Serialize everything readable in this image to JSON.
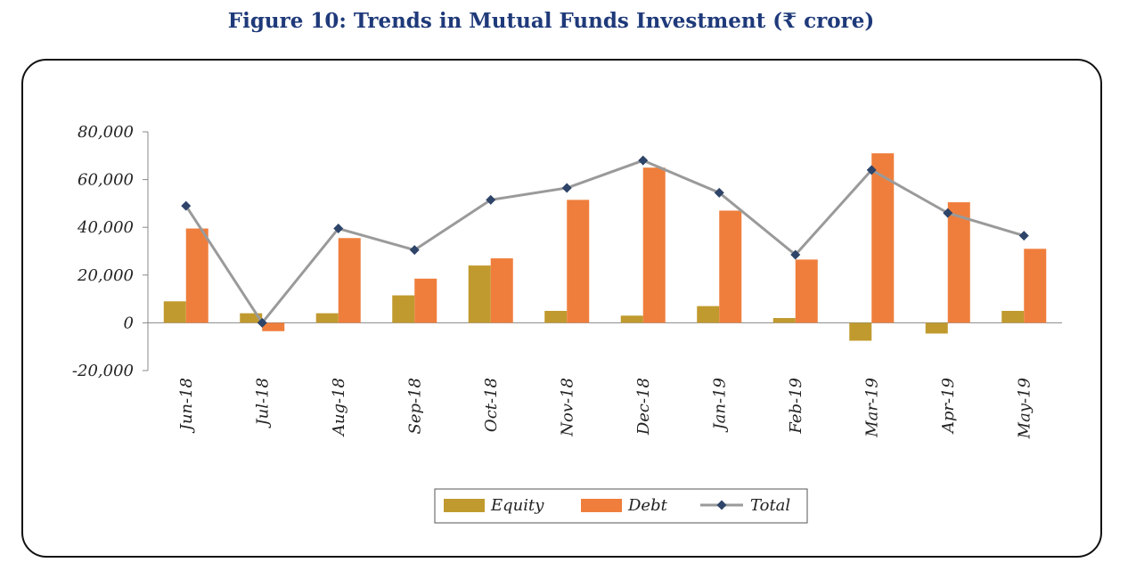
{
  "figure": {
    "title": "Figure 10: Trends in Mutual Funds Investment (₹ crore)"
  },
  "colors": {
    "equity": "#c09a2e",
    "debt": "#ef7e3c",
    "total": "#9a9a9a",
    "marker": "#2e4468",
    "axis": "#888888"
  },
  "chart_data": {
    "type": "bar",
    "title": "Figure 10: Trends in Mutual Funds Investment (₹ crore)",
    "categories": [
      "Jun-18",
      "Jul-18",
      "Aug-18",
      "Sep-18",
      "Oct-18",
      "Nov-18",
      "Dec-18",
      "Jan-19",
      "Feb-19",
      "Mar-19",
      "Apr-19",
      "May-19"
    ],
    "series": [
      {
        "name": "Equity",
        "type": "bar",
        "values": [
          9000,
          4000,
          4000,
          11500,
          24000,
          5000,
          3000,
          7000,
          2000,
          -7500,
          -4500,
          5000
        ]
      },
      {
        "name": "Debt",
        "type": "bar",
        "values": [
          39500,
          -3500,
          35500,
          18500,
          27000,
          51500,
          65000,
          47000,
          26500,
          71000,
          50500,
          31000
        ]
      },
      {
        "name": "Total",
        "type": "line",
        "values": [
          49000,
          0,
          39500,
          30500,
          51500,
          56500,
          68000,
          54500,
          28500,
          64000,
          46000,
          36500
        ]
      }
    ],
    "ylim": [
      -20000,
      80000
    ],
    "yticks": [
      "80,000",
      "60,000",
      "40,000",
      "20,000",
      "0",
      "-20,000"
    ],
    "legend_position": "bottom",
    "grid": false
  }
}
